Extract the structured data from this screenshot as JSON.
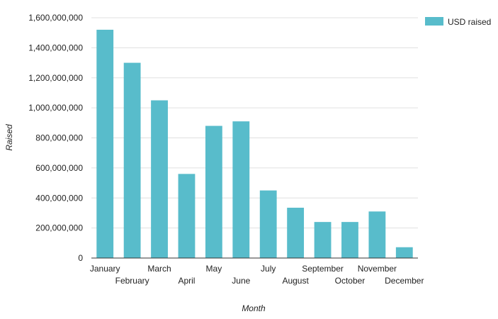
{
  "chart_data": {
    "type": "bar",
    "xlabel": "Month",
    "ylabel": "Raised",
    "categories": [
      "January",
      "February",
      "March",
      "April",
      "May",
      "June",
      "July",
      "August",
      "September",
      "October",
      "November",
      "December"
    ],
    "series": [
      {
        "name": "USD raised",
        "color": "#58bccb",
        "values": [
          1520000000,
          1300000000,
          1050000000,
          560000000,
          880000000,
          910000000,
          450000000,
          335000000,
          240000000,
          240000000,
          310000000,
          72000000
        ]
      }
    ],
    "ylim": [
      0,
      1600000000
    ],
    "yticks": [
      "0",
      "200,000,000",
      "400,000,000",
      "600,000,000",
      "800,000,000",
      "1,000,000,000",
      "1,200,000,000",
      "1,400,000,000",
      "1,600,000,000"
    ],
    "grid": true,
    "legend_position": "top-right"
  }
}
